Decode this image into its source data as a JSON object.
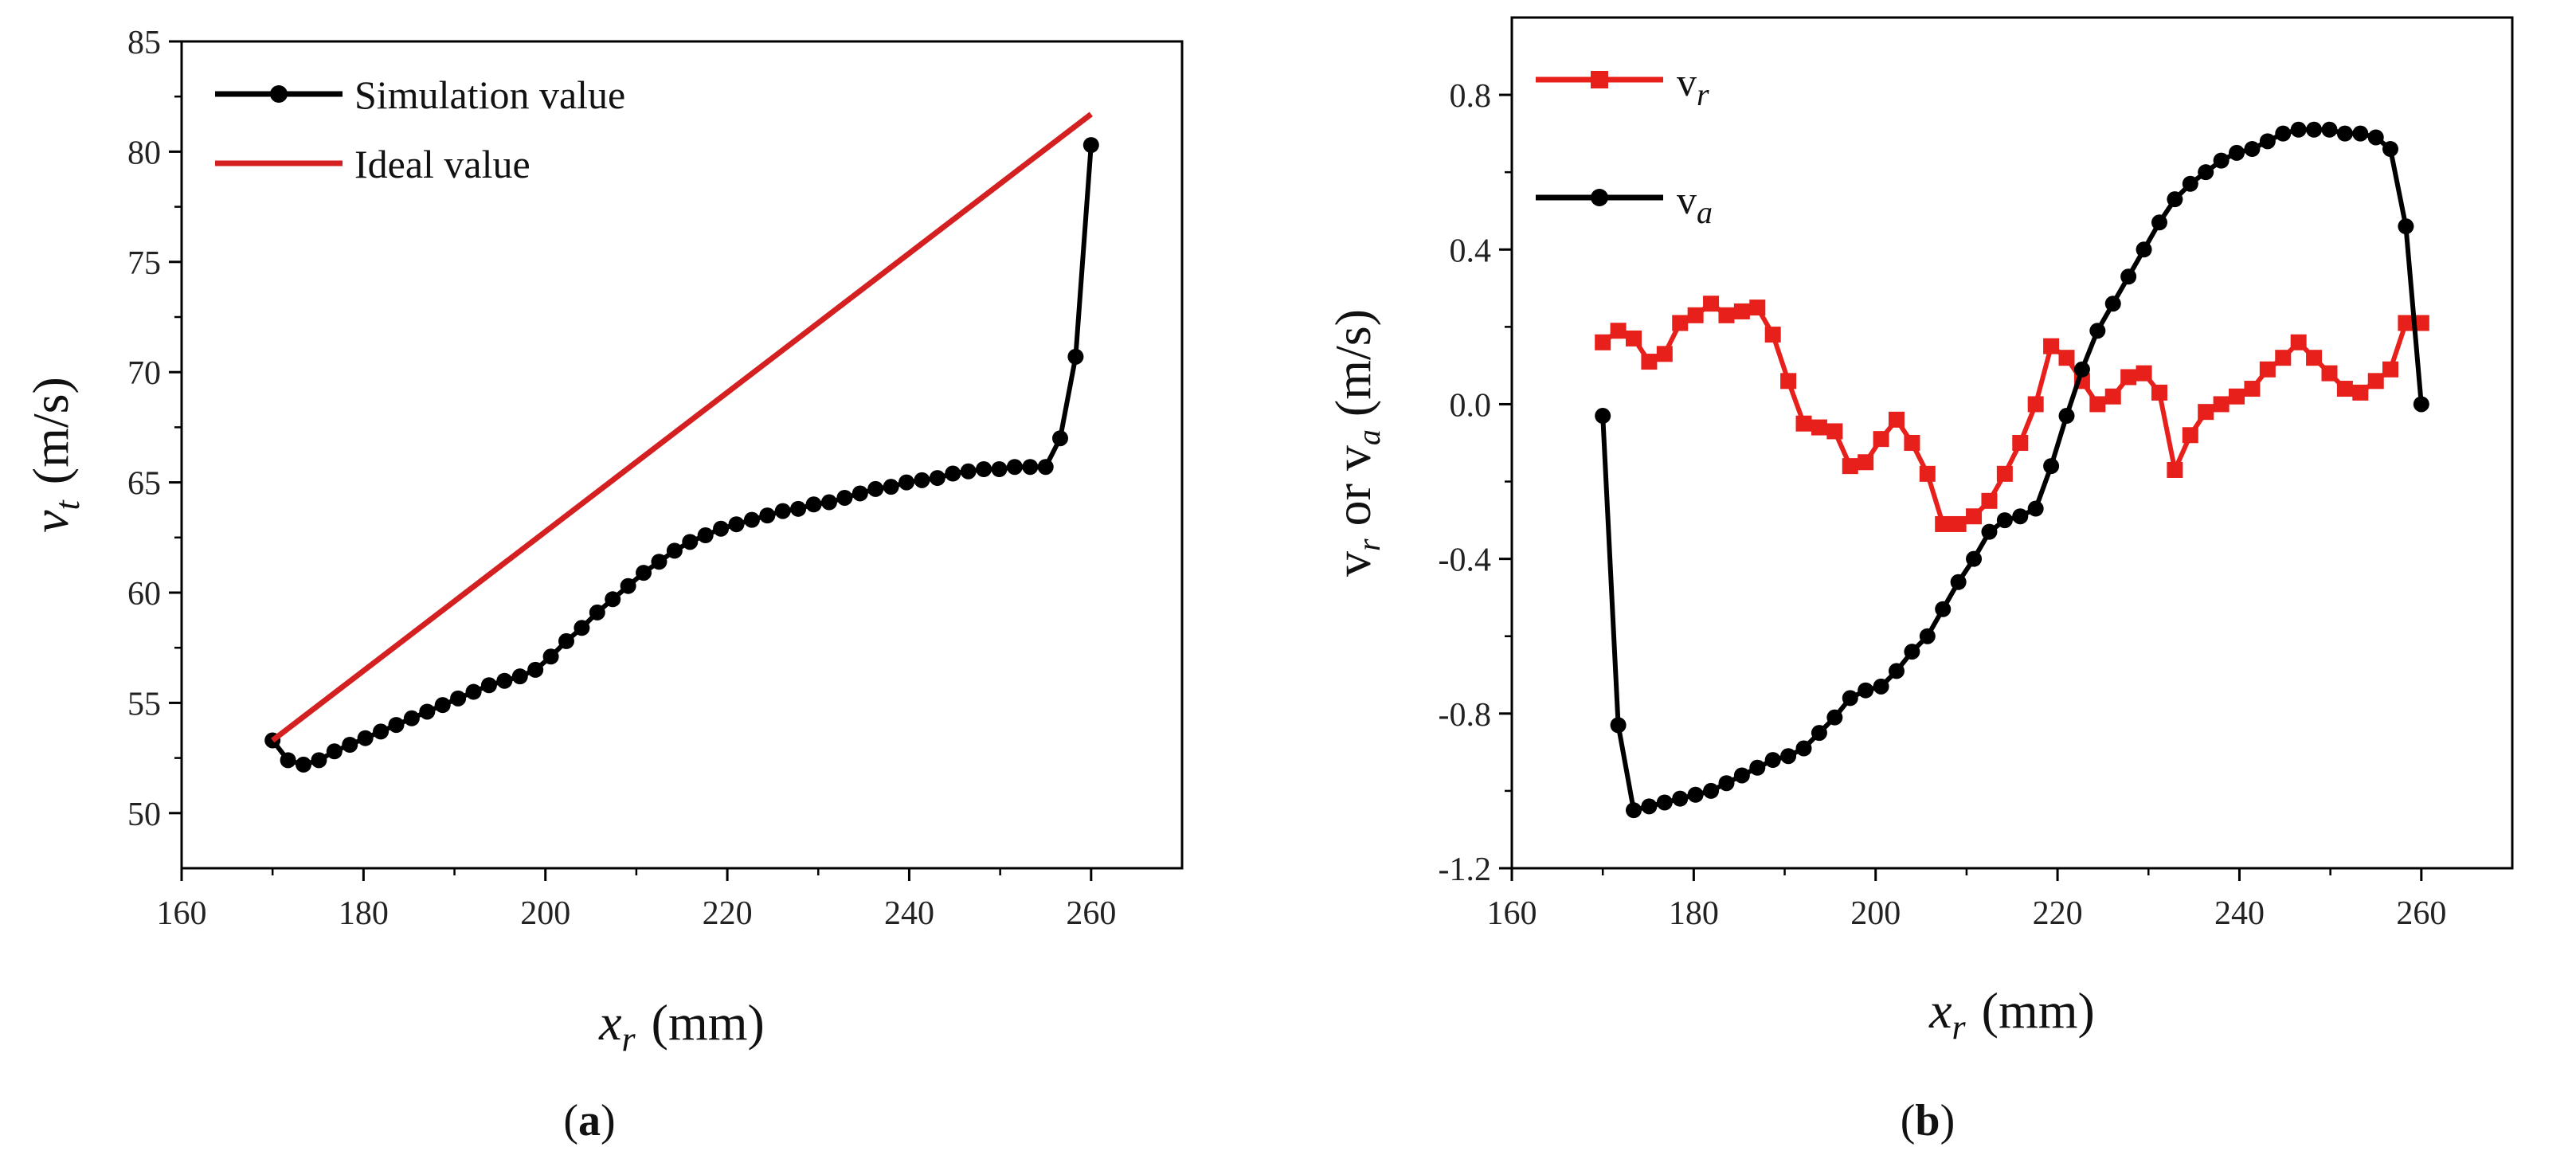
{
  "chart_data": [
    {
      "type": "line",
      "panel": "a",
      "caption_letter": "a",
      "xlabel": {
        "var": "x",
        "sub": "r",
        "unit": "(mm)"
      },
      "ylabel": {
        "var": "v",
        "sub": "t",
        "unit": "(m/s)"
      },
      "xlim": [
        160,
        270
      ],
      "ylim": [
        47.5,
        85
      ],
      "xticks": [
        160,
        180,
        200,
        220,
        240,
        260
      ],
      "yticks": [
        50,
        55,
        60,
        65,
        70,
        75,
        80,
        85
      ],
      "legend_position": "top-left",
      "series": [
        {
          "name": "Simulation value",
          "color": "#000000",
          "marker": "circle",
          "x": [
            170,
            171.7,
            173.4,
            175.1,
            176.8,
            178.5,
            180.2,
            181.9,
            183.6,
            185.3,
            187,
            188.7,
            190.4,
            192.1,
            193.8,
            195.5,
            197.2,
            198.9,
            200.6,
            202.3,
            204,
            205.7,
            207.4,
            209.1,
            210.8,
            212.5,
            214.2,
            215.9,
            217.6,
            219.3,
            221,
            222.7,
            224.4,
            226.1,
            227.8,
            229.5,
            231.2,
            232.9,
            234.6,
            236.3,
            238,
            239.7,
            241.4,
            243.1,
            244.8,
            246.5,
            248.2,
            249.9,
            251.6,
            253.3,
            255,
            256.6,
            258.3,
            260
          ],
          "y": [
            53.3,
            52.4,
            52.2,
            52.4,
            52.8,
            53.1,
            53.4,
            53.7,
            54.0,
            54.3,
            54.6,
            54.9,
            55.2,
            55.5,
            55.8,
            56.0,
            56.2,
            56.5,
            57.1,
            57.8,
            58.4,
            59.1,
            59.7,
            60.3,
            60.9,
            61.4,
            61.9,
            62.3,
            62.6,
            62.9,
            63.1,
            63.3,
            63.5,
            63.7,
            63.8,
            64.0,
            64.1,
            64.3,
            64.5,
            64.7,
            64.8,
            65.0,
            65.1,
            65.2,
            65.4,
            65.5,
            65.6,
            65.6,
            65.7,
            65.7,
            65.7,
            67.0,
            70.7,
            80.3
          ]
        },
        {
          "name": "Ideal value",
          "color": "#d42020",
          "marker": "none",
          "x": [
            170,
            260
          ],
          "y": [
            53.3,
            81.7
          ]
        }
      ]
    },
    {
      "type": "line",
      "panel": "b",
      "caption_letter": "b",
      "xlabel": {
        "var": "x",
        "sub": "r",
        "unit": "(mm)"
      },
      "ylabel": {
        "v1": "v",
        "s1": "r",
        "mid": " or ",
        "v2": "v",
        "s2": "a",
        "unit": " (m/s)"
      },
      "xlim": [
        160,
        270
      ],
      "ylim": [
        -1.2,
        1.0
      ],
      "xticks": [
        160,
        180,
        200,
        220,
        240,
        260
      ],
      "yticks": [
        -1.2,
        -0.8,
        -0.4,
        0.0,
        0.4,
        0.8
      ],
      "ytick_labels": [
        "-1.2",
        "-0.8",
        "-0.4",
        "0.0",
        "0.4",
        "0.8"
      ],
      "legend_position": "top-left",
      "series": [
        {
          "name": "v",
          "sub": "r",
          "color": "#e8201c",
          "marker": "square",
          "x": [
            170,
            171.7,
            173.4,
            175.1,
            176.8,
            178.5,
            180.2,
            181.9,
            183.6,
            185.3,
            187,
            188.7,
            190.4,
            192.1,
            193.8,
            195.5,
            197.2,
            198.9,
            200.6,
            202.3,
            204,
            205.7,
            207.4,
            209.1,
            210.8,
            212.5,
            214.2,
            215.9,
            217.6,
            219.3,
            221,
            222.7,
            224.4,
            226.1,
            227.8,
            229.5,
            231.2,
            232.9,
            234.6,
            236.3,
            238,
            239.7,
            241.4,
            243.1,
            244.8,
            246.5,
            248.2,
            249.9,
            251.6,
            253.3,
            255,
            256.6,
            258.3,
            260
          ],
          "y": [
            0.16,
            0.19,
            0.17,
            0.11,
            0.13,
            0.21,
            0.23,
            0.26,
            0.23,
            0.24,
            0.25,
            0.18,
            0.06,
            -0.05,
            -0.06,
            -0.07,
            -0.16,
            -0.15,
            -0.09,
            -0.04,
            -0.1,
            -0.18,
            -0.31,
            -0.31,
            -0.29,
            -0.25,
            -0.18,
            -0.1,
            0.0,
            0.15,
            0.12,
            0.06,
            0.0,
            0.02,
            0.07,
            0.08,
            0.03,
            -0.17,
            -0.08,
            -0.02,
            0.0,
            0.02,
            0.04,
            0.09,
            0.12,
            0.16,
            0.12,
            0.08,
            0.04,
            0.03,
            0.06,
            0.09,
            0.21,
            0.21
          ]
        },
        {
          "name": "v",
          "sub": "a",
          "color": "#000000",
          "marker": "circle",
          "x": [
            170,
            171.7,
            173.4,
            175.1,
            176.8,
            178.5,
            180.2,
            181.9,
            183.6,
            185.3,
            187,
            188.7,
            190.4,
            192.1,
            193.8,
            195.5,
            197.2,
            198.9,
            200.6,
            202.3,
            204,
            205.7,
            207.4,
            209.1,
            210.8,
            212.5,
            214.2,
            215.9,
            217.6,
            219.3,
            221,
            222.7,
            224.4,
            226.1,
            227.8,
            229.5,
            231.2,
            232.9,
            234.6,
            236.3,
            238,
            239.7,
            241.4,
            243.1,
            244.8,
            246.5,
            248.2,
            249.9,
            251.6,
            253.3,
            255,
            256.6,
            258.3,
            260
          ],
          "y": [
            -0.03,
            -0.83,
            -1.05,
            -1.04,
            -1.03,
            -1.02,
            -1.01,
            -1.0,
            -0.98,
            -0.96,
            -0.94,
            -0.92,
            -0.91,
            -0.89,
            -0.85,
            -0.81,
            -0.76,
            -0.74,
            -0.73,
            -0.69,
            -0.64,
            -0.6,
            -0.53,
            -0.46,
            -0.4,
            -0.33,
            -0.3,
            -0.29,
            -0.27,
            -0.16,
            -0.03,
            0.09,
            0.19,
            0.26,
            0.33,
            0.4,
            0.47,
            0.53,
            0.57,
            0.6,
            0.63,
            0.65,
            0.66,
            0.68,
            0.7,
            0.71,
            0.71,
            0.71,
            0.7,
            0.7,
            0.69,
            0.66,
            0.46,
            0.0
          ]
        }
      ]
    }
  ]
}
